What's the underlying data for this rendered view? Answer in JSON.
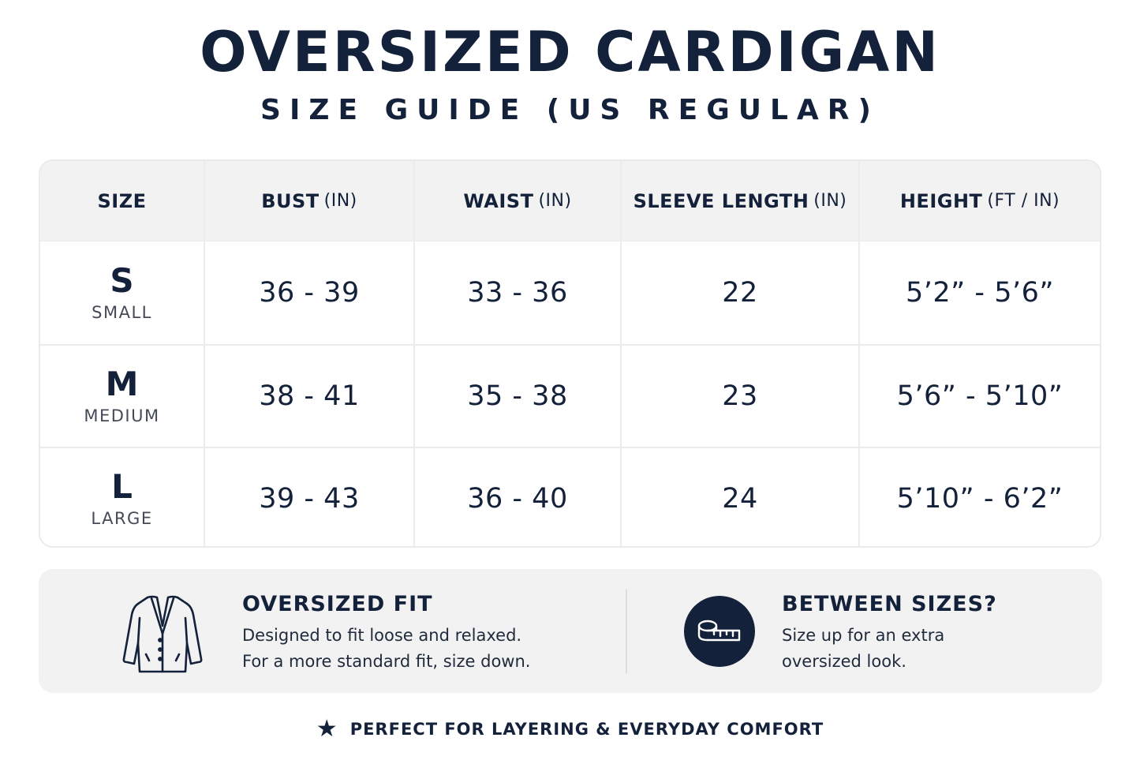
{
  "header": {
    "title": "OVERSIZED CARDIGAN",
    "subtitle": "SIZE GUIDE (US REGULAR)"
  },
  "table": {
    "columns": [
      {
        "label": "SIZE",
        "unit": ""
      },
      {
        "label": "BUST",
        "unit": "(IN)"
      },
      {
        "label": "WAIST",
        "unit": "(IN)"
      },
      {
        "label": "SLEEVE LENGTH",
        "unit": "(IN)"
      },
      {
        "label": "HEIGHT",
        "unit": "(FT / IN)"
      }
    ],
    "rows": [
      {
        "size": "S",
        "size_name": "SMALL",
        "bust": "36 - 39",
        "waist": "33 - 36",
        "sleeve": "22",
        "height": "5’2” - 5’6”"
      },
      {
        "size": "M",
        "size_name": "MEDIUM",
        "bust": "38 - 41",
        "waist": "35 - 38",
        "sleeve": "23",
        "height": "5’6” - 5’10”"
      },
      {
        "size": "L",
        "size_name": "LARGE",
        "bust": "39 - 43",
        "waist": "36 - 40",
        "sleeve": "24",
        "height": "5’10” - 6’2”"
      }
    ]
  },
  "info": {
    "fit": {
      "icon": "cardigan-icon",
      "title": "OVERSIZED FIT",
      "line1": "Designed to fit loose and relaxed.",
      "line2": "For a more standard fit, size down."
    },
    "between": {
      "icon": "measuring-tape-icon",
      "title": "BETWEEN SIZES?",
      "line1": "Size up for an extra",
      "line2": "oversized look."
    }
  },
  "footer": {
    "icon": "star-icon",
    "text": "PERFECT FOR LAYERING & EVERYDAY COMFORT"
  },
  "colors": {
    "primary": "#14213a",
    "panel": "#f2f2f2",
    "border": "#ebebeb"
  }
}
